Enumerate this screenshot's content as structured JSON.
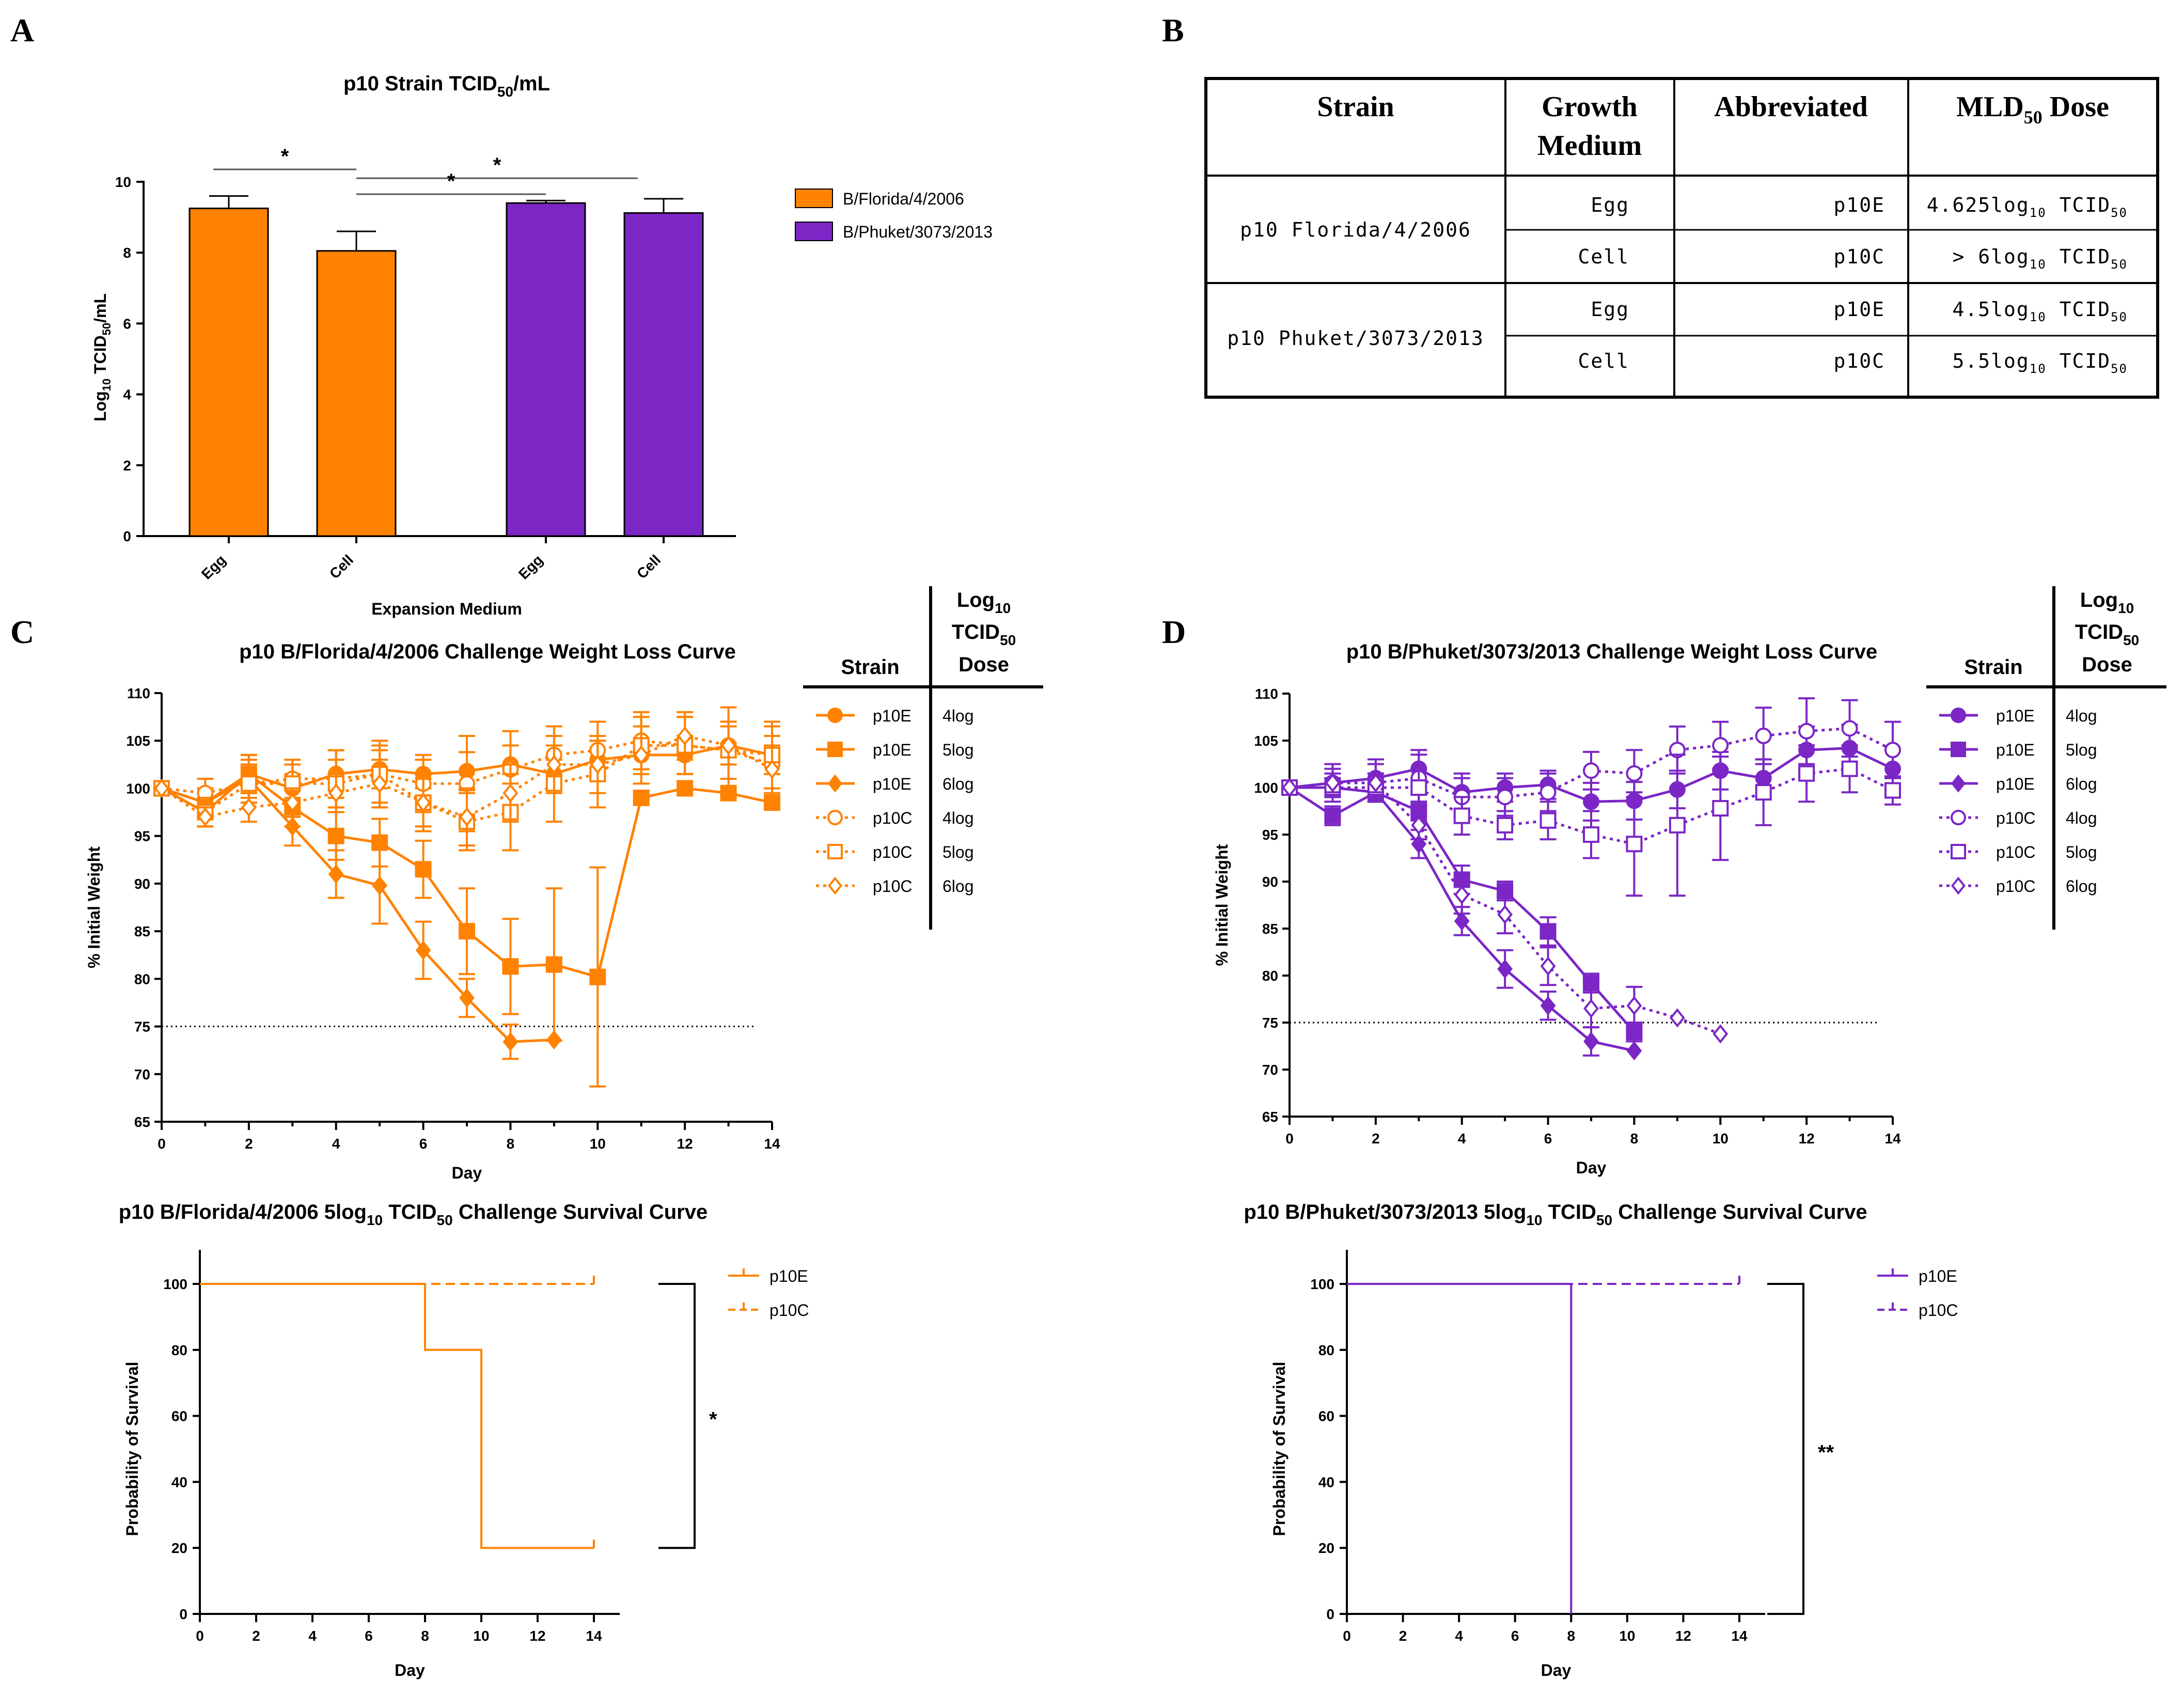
{
  "panels": {
    "a": "A",
    "b": "B",
    "c": "C",
    "d": "D"
  },
  "colors": {
    "florida": "#FF8201",
    "phuket": "#7B26C5",
    "axis": "#000000"
  },
  "chart_data": [
    {
      "id": "a",
      "type": "bar",
      "title": "p10 Strain TCID",
      "title_sub": "50",
      "title_tail": "/mL",
      "ylabel": "Log",
      "ylabel_sub": "10",
      "ylabel_mid": " TCID",
      "ylabel_sub2": "50",
      "ylabel_tail": "/mL",
      "xlabel": "Expansion Medium",
      "ylim": [
        0,
        10
      ],
      "yticks": [
        "0",
        "2",
        "4",
        "6",
        "8",
        "10"
      ],
      "categories": [
        "Egg",
        "Cell",
        "Egg",
        "Cell"
      ],
      "values": [
        9.25,
        8.05,
        9.4,
        9.12
      ],
      "errors": [
        0.35,
        0.55,
        0.07,
        0.4
      ],
      "groups": [
        "B/Florida/4/2006",
        "B/Florida/4/2006",
        "B/Phuket/3073/2013",
        "B/Phuket/3073/2013"
      ],
      "legend": [
        {
          "label": "B/Florida/4/2006",
          "color": "#FF8201"
        },
        {
          "label": "B/Phuket/3073/2013",
          "color": "#7B26C5"
        }
      ],
      "significance": [
        {
          "from": 0,
          "to": 1,
          "level": 10.35,
          "label": "*"
        },
        {
          "from": 1,
          "to": 3,
          "level": 10.1,
          "label": "*"
        },
        {
          "from": 1,
          "to": 2,
          "level": 9.65,
          "label": "*"
        }
      ]
    },
    {
      "id": "c",
      "type": "line",
      "title": "p10 B/Florida/4/2006 Challenge Weight Loss Curve",
      "xlabel": "Day",
      "ylabel": "% Initial Weight",
      "xlim": [
        0,
        14
      ],
      "ylim": [
        65,
        110
      ],
      "xticks": [
        "0",
        "2",
        "4",
        "6",
        "8",
        "10",
        "12",
        "14"
      ],
      "yticks": [
        "65",
        "70",
        "75",
        "80",
        "85",
        "90",
        "95",
        "100",
        "105",
        "110"
      ],
      "threshold": 75,
      "color": "#FF8201",
      "legend_header": {
        "strain": "Strain",
        "dose_a": "Log",
        "dose_a_sub": "10",
        "dose_b": "TCID",
        "dose_b_sub": "50",
        "dose_c": "Dose"
      },
      "series": [
        {
          "name": "p10E",
          "dose": "4log",
          "marker": "circle",
          "filled": true,
          "dotted": false,
          "x": [
            0,
            1,
            2,
            3,
            4,
            5,
            6,
            7,
            8,
            9,
            10,
            11,
            12,
            13,
            14
          ],
          "y": [
            100,
            98.5,
            101.5,
            100,
            101.5,
            102,
            101.5,
            101.8,
            102.5,
            101.5,
            103,
            103.5,
            103.5,
            104.5,
            103.5
          ],
          "err": [
            0,
            1.5,
            2,
            1.5,
            2.5,
            2,
            1.5,
            2,
            2,
            1.5,
            2,
            1.5,
            2,
            2,
            2
          ]
        },
        {
          "name": "p10E",
          "dose": "5log",
          "marker": "square",
          "filled": true,
          "dotted": false,
          "x": [
            0,
            1,
            2,
            3,
            4,
            5,
            6,
            7,
            8,
            9,
            10,
            11,
            12,
            13,
            14
          ],
          "y": [
            100,
            97.5,
            101.5,
            98,
            95,
            94.3,
            91.5,
            85,
            81.3,
            81.5,
            80.2,
            99,
            100,
            99.5,
            98.5
          ],
          "err": [
            0,
            1.5,
            2,
            2,
            2.5,
            2.5,
            3,
            4.5,
            5,
            8,
            11.5,
            0,
            0,
            0,
            0
          ]
        },
        {
          "name": "p10E",
          "dose": "6log",
          "marker": "diamond",
          "filled": true,
          "dotted": false,
          "x": [
            0,
            1,
            2,
            3,
            4,
            5,
            6,
            7,
            8,
            9
          ],
          "y": [
            100,
            98.5,
            101,
            96,
            91,
            89.8,
            83,
            78,
            73.4,
            73.6
          ],
          "err": [
            0,
            1.5,
            2,
            2,
            2.5,
            4,
            3,
            2,
            1.8,
            0
          ]
        },
        {
          "name": "p10C",
          "dose": "4log",
          "marker": "circle",
          "filled": false,
          "dotted": true,
          "x": [
            0,
            1,
            2,
            3,
            4,
            5,
            6,
            7,
            8,
            9,
            10,
            11,
            12,
            13,
            14
          ],
          "y": [
            100,
            99.5,
            100.5,
            101,
            101,
            101.5,
            100.5,
            100.5,
            102,
            103.5,
            104,
            105,
            104.5,
            104,
            102.5
          ],
          "err": [
            0,
            1.5,
            2,
            2,
            3,
            3.5,
            3,
            5,
            4,
            3,
            3,
            3,
            3,
            4.5,
            4
          ]
        },
        {
          "name": "p10C",
          "dose": "5log",
          "marker": "square",
          "filled": false,
          "dotted": true,
          "x": [
            0,
            1,
            2,
            3,
            4,
            5,
            6,
            7,
            8,
            9,
            10,
            11,
            12,
            13,
            14
          ],
          "y": [
            100,
            97.5,
            100.5,
            100.5,
            100.5,
            101.5,
            98.5,
            96.5,
            97.5,
            100.5,
            101.5,
            104.5,
            104.5,
            104,
            103.5
          ],
          "err": [
            0,
            1.5,
            2,
            2,
            2.5,
            3,
            3,
            3,
            4,
            4,
            3.5,
            3,
            3,
            3,
            3.5
          ]
        },
        {
          "name": "p10C",
          "dose": "6log",
          "marker": "diamond",
          "filled": false,
          "dotted": true,
          "x": [
            0,
            1,
            2,
            3,
            4,
            5,
            6,
            7,
            8,
            9,
            10,
            11,
            12,
            13,
            14
          ],
          "y": [
            100,
            97,
            98,
            98.5,
            99.5,
            100.5,
            98.5,
            97,
            99.5,
            102.5,
            102.5,
            103.5,
            105.5,
            104.5,
            102
          ],
          "err": [
            0,
            1,
            1.5,
            1.5,
            2,
            2.5,
            2.5,
            3,
            3,
            3,
            3,
            3,
            2.5,
            2,
            2.5
          ]
        }
      ]
    },
    {
      "id": "d",
      "type": "line",
      "title": "p10 B/Phuket/3073/2013 Challenge Weight Loss Curve",
      "xlabel": "Day",
      "ylabel": "% Initial Weight",
      "xlim": [
        0,
        14
      ],
      "ylim": [
        65,
        110
      ],
      "xticks": [
        "0",
        "2",
        "4",
        "6",
        "8",
        "10",
        "12",
        "14"
      ],
      "yticks": [
        "65",
        "70",
        "75",
        "80",
        "85",
        "90",
        "95",
        "100",
        "105",
        "110"
      ],
      "threshold": 75,
      "color": "#7B26C5",
      "legend_header": {
        "strain": "Strain",
        "dose_a": "Log",
        "dose_a_sub": "10",
        "dose_b": "TCID",
        "dose_b_sub": "50",
        "dose_c": "Dose"
      },
      "series": [
        {
          "name": "p10E",
          "dose": "4log",
          "marker": "circle",
          "filled": true,
          "dotted": false,
          "x": [
            0,
            1,
            2,
            3,
            4,
            5,
            6,
            7,
            8,
            9,
            10,
            11,
            12,
            13,
            14
          ],
          "y": [
            100,
            100.5,
            101,
            102,
            99.5,
            100,
            100.3,
            98.5,
            98.6,
            99.8,
            101.8,
            101,
            104,
            104.2,
            102
          ],
          "err": [
            0,
            2,
            2,
            2,
            2,
            1.5,
            1.5,
            2,
            2,
            2,
            2,
            2,
            2.5,
            2.5,
            2
          ]
        },
        {
          "name": "p10E",
          "dose": "5log",
          "marker": "square",
          "filled": true,
          "dotted": false,
          "x": [
            0,
            1,
            2,
            3,
            4,
            5,
            6,
            7,
            8
          ],
          "y": [
            100,
            97,
            99.5,
            97.5,
            90.2,
            89,
            84.7,
            79.2,
            74
          ],
          "err": [
            0,
            1,
            1,
            1,
            1.5,
            1,
            1.5,
            1,
            1
          ]
        },
        {
          "name": "p10E",
          "dose": "6log",
          "marker": "diamond",
          "filled": true,
          "dotted": false,
          "x": [
            0,
            1,
            2,
            3,
            4,
            5,
            6,
            7,
            8
          ],
          "y": [
            100,
            100,
            99.5,
            94,
            85.8,
            80.7,
            76.8,
            73,
            72
          ],
          "err": [
            0,
            1,
            1,
            1.5,
            1.5,
            2,
            1.5,
            1.5,
            0
          ]
        },
        {
          "name": "p10C",
          "dose": "4log",
          "marker": "circle",
          "filled": false,
          "dotted": true,
          "x": [
            0,
            1,
            2,
            3,
            4,
            5,
            6,
            7,
            8,
            9,
            10,
            11,
            12,
            13,
            14
          ],
          "y": [
            100,
            100.5,
            100.5,
            101,
            99,
            99,
            99.5,
            101.8,
            101.5,
            104,
            104.5,
            105.5,
            106,
            106.3,
            104
          ],
          "err": [
            0,
            1.5,
            2,
            2.5,
            2,
            2,
            2,
            2,
            2.5,
            2.5,
            2.5,
            3,
            3.5,
            3,
            3
          ]
        },
        {
          "name": "p10C",
          "dose": "5log",
          "marker": "square",
          "filled": false,
          "dotted": true,
          "x": [
            0,
            1,
            2,
            3,
            4,
            5,
            6,
            7,
            8,
            9,
            10,
            11,
            12,
            13,
            14
          ],
          "y": [
            100,
            100,
            100,
            100,
            97,
            96,
            96.5,
            95,
            94,
            96,
            97.8,
            99.5,
            101.5,
            102,
            99.7
          ],
          "err": [
            0,
            1,
            1.5,
            2,
            2,
            1.5,
            2,
            2.5,
            5.5,
            7.5,
            5.5,
            3.5,
            3,
            2.5,
            1.5
          ]
        },
        {
          "name": "p10C",
          "dose": "6log",
          "marker": "diamond",
          "filled": false,
          "dotted": true,
          "x": [
            0,
            1,
            2,
            3,
            4,
            5,
            6,
            7,
            8,
            9,
            10
          ],
          "y": [
            100,
            100.5,
            100.5,
            96,
            88.6,
            86.5,
            81,
            76.5,
            76.8,
            75.5,
            73.8
          ],
          "err": [
            0,
            1,
            1,
            1.5,
            2,
            2,
            2,
            2,
            2,
            0,
            0
          ]
        }
      ]
    },
    {
      "id": "c_surv",
      "type": "step",
      "title": "p10 B/Florida/4/2006 5log",
      "title_sub": "10",
      "title_mid": " TCID",
      "title_sub2": "50",
      "title_tail": " Challenge Survival Curve",
      "xlabel": "Day",
      "ylabel": "Probability of Survival",
      "xlim": [
        0,
        15
      ],
      "ylim": [
        0,
        110
      ],
      "xticks": [
        "0",
        "2",
        "4",
        "6",
        "8",
        "10",
        "12",
        "14"
      ],
      "yticks": [
        "0",
        "20",
        "40",
        "60",
        "80",
        "100"
      ],
      "color": "#FF8201",
      "series": [
        {
          "name": "p10E",
          "dashed": false,
          "x": [
            0,
            8,
            10,
            14
          ],
          "y": [
            100,
            80,
            20,
            20
          ]
        },
        {
          "name": "p10C",
          "dashed": true,
          "x": [
            0,
            14
          ],
          "y": [
            100,
            100
          ]
        }
      ],
      "bracket": {
        "top": 100,
        "bottom": 20,
        "label": "*"
      }
    },
    {
      "id": "d_surv",
      "type": "step",
      "title": "p10 B/Phuket/3073/2013 5log",
      "title_sub": "10",
      "title_mid": " TCID",
      "title_sub2": "50",
      "title_tail": " Challenge Survival Curve",
      "xlabel": "Day",
      "ylabel": "Probability of Survival",
      "xlim": [
        0,
        15
      ],
      "ylim": [
        0,
        110
      ],
      "xticks": [
        "0",
        "2",
        "4",
        "6",
        "8",
        "10",
        "12",
        "14"
      ],
      "yticks": [
        "0",
        "20",
        "40",
        "60",
        "80",
        "100"
      ],
      "color": "#7B26C5",
      "series": [
        {
          "name": "p10E",
          "dashed": false,
          "x": [
            0,
            8
          ],
          "y": [
            100,
            0
          ]
        },
        {
          "name": "p10C",
          "dashed": true,
          "x": [
            0,
            14
          ],
          "y": [
            100,
            100
          ]
        }
      ],
      "bracket": {
        "top": 100,
        "bottom": 0,
        "label": "**"
      }
    }
  ],
  "table": {
    "headers": {
      "strain": "Strain",
      "growth1": "Growth",
      "growth2": "Medium",
      "abbrev": "Abbreviated",
      "mld": "MLD",
      "mld_sub": "50",
      "mld_tail": " Dose"
    },
    "groups": [
      {
        "strain": "p10 Florida/4/2006",
        "rows": [
          {
            "medium": "Egg",
            "abbrev": "p10E",
            "dose_pre": "4.625log",
            "dose_sub": "10",
            "dose_mid": " TCID",
            "dose_sub2": "50"
          },
          {
            "medium": "Cell",
            "abbrev": "p10C",
            "dose_pre": "> 6log",
            "dose_sub": "10",
            "dose_mid": " TCID",
            "dose_sub2": "50"
          }
        ]
      },
      {
        "strain": "p10 Phuket/3073/2013",
        "rows": [
          {
            "medium": "Egg",
            "abbrev": "p10E",
            "dose_pre": "4.5log",
            "dose_sub": "10",
            "dose_mid": " TCID",
            "dose_sub2": "50"
          },
          {
            "medium": "Cell",
            "abbrev": "p10C",
            "dose_pre": "5.5log",
            "dose_sub": "10",
            "dose_mid": " TCID",
            "dose_sub2": "50"
          }
        ]
      }
    ]
  }
}
